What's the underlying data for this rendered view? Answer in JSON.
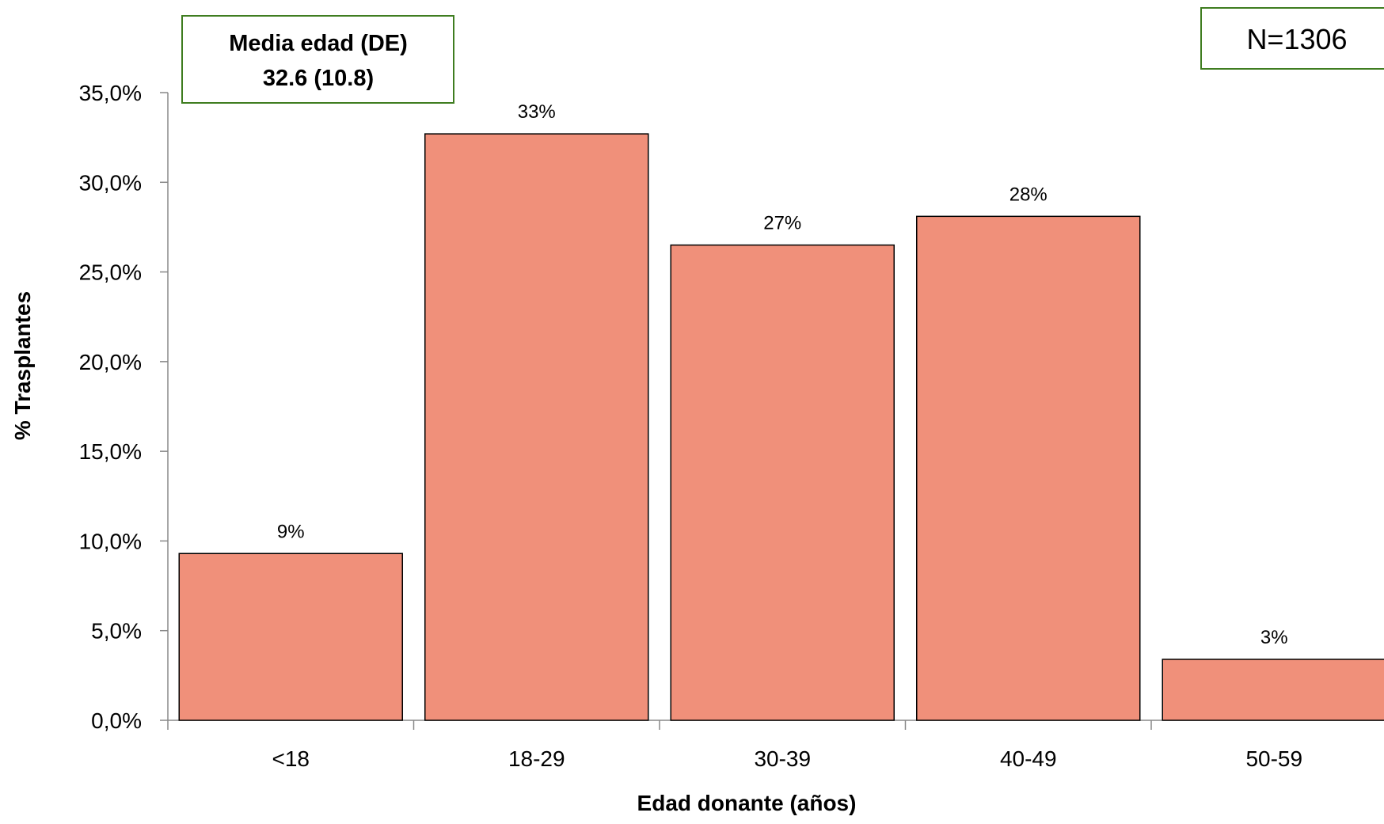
{
  "chart_data": {
    "type": "bar",
    "categories": [
      "<18",
      "18-29",
      "30-39",
      "40-49",
      "50-59"
    ],
    "values": [
      9.3,
      32.7,
      26.5,
      28.1,
      3.4
    ],
    "data_labels": [
      "9%",
      "33%",
      "27%",
      "28%",
      "3%"
    ],
    "title": "",
    "xlabel": "Edad donante (años)",
    "ylabel": "% Trasplantes",
    "ylim": [
      0,
      35
    ],
    "yticks": [
      0,
      5,
      10,
      15,
      20,
      25,
      30,
      35
    ],
    "ytick_labels": [
      "0,0%",
      "5,0%",
      "10,0%",
      "15,0%",
      "20,0%",
      "25,0%",
      "30,0%",
      "35,0%"
    ],
    "grid": false,
    "legend": "none",
    "bar_color": "#F0907A",
    "bar_edge_color": "#000000",
    "box_border_color": "#3F7D20",
    "annotations": {
      "stats_line1": "Media edad (DE)",
      "stats_line2": "32.6 (10.8)",
      "n_label": "N=1306"
    }
  }
}
